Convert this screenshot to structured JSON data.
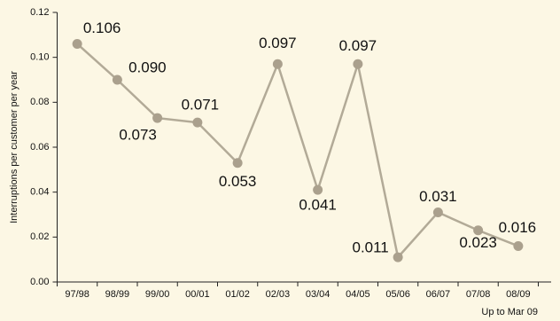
{
  "chart_data": {
    "type": "line",
    "y_label": "Interruptions per customer per year",
    "categories": [
      "97/98",
      "98/99",
      "99/00",
      "00/01",
      "01/02",
      "02/03",
      "03/04",
      "04/05",
      "05/06",
      "06/07",
      "07/08",
      "08/09"
    ],
    "annotation": "Up to Mar 09",
    "series": [
      {
        "color": "#b2aa97",
        "values": [
          0.106,
          0.09,
          0.073,
          0.071,
          0.053,
          0.097,
          0.041,
          0.097,
          0.011,
          0.031,
          0.023,
          0.016
        ],
        "value_labels": [
          "0.106",
          "0.090",
          "0.073",
          "0.071",
          "0.053",
          "0.097",
          "0.041",
          "0.097",
          "0.011",
          "0.031",
          "0.023",
          "0.016"
        ]
      }
    ],
    "ylim": [
      0,
      0.12
    ],
    "yticks": [
      {
        "value": 0,
        "label": "0.00"
      },
      {
        "value": 0.02,
        "label": "0.02"
      },
      {
        "value": 0.04,
        "label": "0.04"
      },
      {
        "value": 0.06,
        "label": "0.06"
      },
      {
        "value": 0.08,
        "label": "0.08"
      },
      {
        "value": 0.1,
        "label": "0.10"
      },
      {
        "value": 0.12,
        "label": "0.12"
      }
    ]
  }
}
